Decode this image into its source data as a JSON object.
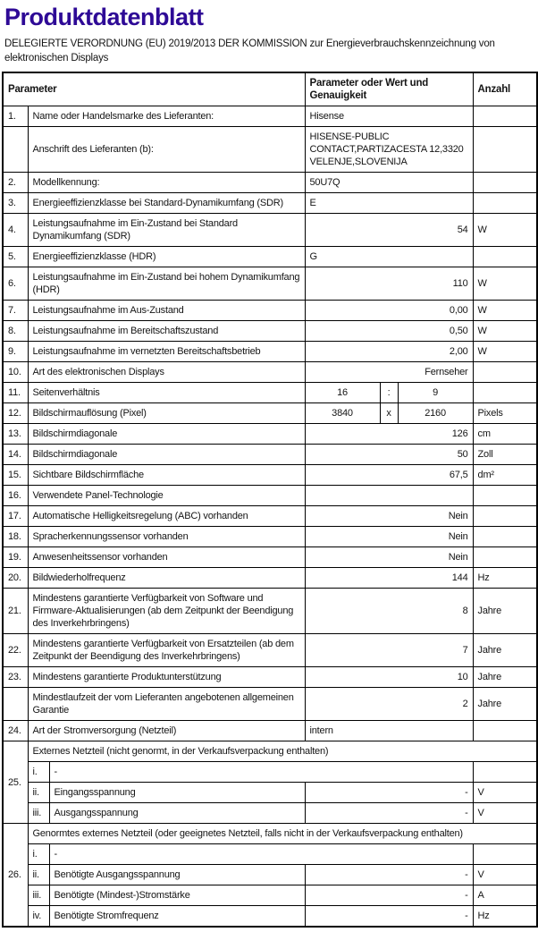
{
  "page": {
    "title": "Produktdatenblatt",
    "title_color": "#2e0a96",
    "subtitle": "DELEGIERTE VERORDNUNG (EU) 2019/2013 DER KOMMISSION zur Energieverbrauchskennzeichnung von elektronischen Displays"
  },
  "table": {
    "headers": {
      "parameter": "Parameter",
      "value": "Parameter oder Wert und Genauigkeit",
      "amount": "Anzahl"
    },
    "rows": [
      {
        "t": "r",
        "num": "1.",
        "label": "Name oder Handelsmarke des Lieferanten:",
        "value": "Hisense",
        "align": "left",
        "unit": ""
      },
      {
        "t": "r",
        "num": "",
        "label": "Anschrift des Lieferanten (b):",
        "value": "HISENSE-PUBLIC CONTACT,PARTIZACESTA 12,3320 VELENJE,SLOVENIJA",
        "align": "left",
        "unit": ""
      },
      {
        "t": "r",
        "num": "2.",
        "label": "Modellkennung:",
        "value": "50U7Q",
        "align": "left",
        "unit": ""
      },
      {
        "t": "r",
        "num": "3.",
        "label": "Energieeffizienzklasse bei Standard-Dynamikumfang (SDR)",
        "value": "E",
        "align": "left",
        "unit": ""
      },
      {
        "t": "r",
        "num": "4.",
        "label": "Leistungsaufnahme im Ein-Zustand bei Standard Dynamikumfang (SDR)",
        "value": "54",
        "align": "right",
        "unit": "W"
      },
      {
        "t": "r",
        "num": "5.",
        "label": "Energieeffizienzklasse (HDR)",
        "value": "G",
        "align": "left",
        "unit": ""
      },
      {
        "t": "r",
        "num": "6.",
        "label": "Leistungsaufnahme im Ein-Zustand bei hohem Dynamikumfang (HDR)",
        "value": "110",
        "align": "right",
        "unit": "W"
      },
      {
        "t": "r",
        "num": "7.",
        "label": "Leistungsaufnahme im Aus-Zustand",
        "value": "0,00",
        "align": "right",
        "unit": "W"
      },
      {
        "t": "r",
        "num": "8.",
        "label": "Leistungsaufnahme im Bereitschaftszustand",
        "value": "0,50",
        "align": "right",
        "unit": "W"
      },
      {
        "t": "r",
        "num": "9.",
        "label": "Leistungsaufnahme im vernetzten Bereitschaftsbetrieb",
        "value": "2,00",
        "align": "right",
        "unit": "W"
      },
      {
        "t": "r",
        "num": "10.",
        "label": "Art des elektronischen Displays",
        "value": "Fernseher",
        "align": "right",
        "unit": ""
      },
      {
        "t": "t3",
        "num": "11.",
        "label": "Seitenverhältnis",
        "v1": "16",
        "sep": ":",
        "v2": "9",
        "unit": ""
      },
      {
        "t": "t3",
        "num": "12.",
        "label": "Bildschirmauflösung (Pixel)",
        "v1": "3840",
        "sep": "x",
        "v2": "2160",
        "unit": "Pixels"
      },
      {
        "t": "r",
        "num": "13.",
        "label": "Bildschirmdiagonale",
        "value": "126",
        "align": "right",
        "unit": "cm"
      },
      {
        "t": "r",
        "num": "14.",
        "label": "Bildschirmdiagonale",
        "value": "50",
        "align": "right",
        "unit": "Zoll"
      },
      {
        "t": "r",
        "num": "15.",
        "label": "Sichtbare Bildschirmfläche",
        "value": "67,5",
        "align": "right",
        "unit": "dm²"
      },
      {
        "t": "r",
        "num": "16.",
        "label": "Verwendete Panel-Technologie",
        "value": "",
        "align": "left",
        "unit": ""
      },
      {
        "t": "r",
        "num": "17.",
        "label": "Automatische Helligkeitsregelung (ABC) vorhanden",
        "value": "Nein",
        "align": "right",
        "unit": ""
      },
      {
        "t": "r",
        "num": "18.",
        "label": "Spracherkennungssensor vorhanden",
        "value": "Nein",
        "align": "right",
        "unit": ""
      },
      {
        "t": "r",
        "num": "19.",
        "label": "Anwesenheitssensor vorhanden",
        "value": "Nein",
        "align": "right",
        "unit": ""
      },
      {
        "t": "r",
        "num": "20.",
        "label": "Bildwiederholfrequenz",
        "value": "144",
        "align": "right",
        "unit": "Hz"
      },
      {
        "t": "r",
        "num": "21.",
        "label": "Mindestens garantierte Verfügbarkeit von Software und Firmware-Aktualisierungen (ab dem Zeitpunkt der Beendigung des Inverkehrbringens)",
        "value": "8",
        "align": "right",
        "unit": "Jahre"
      },
      {
        "t": "r",
        "num": "22.",
        "label": "Mindestens garantierte Verfügbarkeit von Ersatzteilen (ab dem Zeitpunkt der Beendigung des Inverkehrbringens)",
        "value": "7",
        "align": "right",
        "unit": "Jahre"
      },
      {
        "t": "r",
        "num": "23.",
        "label": "Mindestens garantierte Produktunterstützung",
        "value": "10",
        "align": "right",
        "unit": "Jahre"
      },
      {
        "t": "r",
        "num": "",
        "label": "Mindestlaufzeit der vom Lieferanten angebotenen allgemeinen Garantie",
        "value": "2",
        "align": "right",
        "unit": "Jahre"
      },
      {
        "t": "r",
        "num": "24.",
        "label": "Art der Stromversorgung (Netzteil)",
        "value": "intern",
        "align": "left",
        "unit": ""
      },
      {
        "t": "g",
        "num": "25.",
        "label": "Externes Netzteil (nicht genormt, in der Verkaufsverpackung enthalten)",
        "span": 4
      },
      {
        "t": "sd",
        "num": "i.",
        "value": "-"
      },
      {
        "t": "s",
        "num": "ii.",
        "label": "Eingangsspannung",
        "value": "-",
        "unit": "V"
      },
      {
        "t": "s",
        "num": "iii.",
        "label": "Ausgangsspannung",
        "value": "-",
        "unit": "V"
      },
      {
        "t": "g",
        "num": "26.",
        "label": "Genormtes externes Netzteil (oder geeignetes Netzteil, falls nicht in der Verkaufsverpackung enthalten)",
        "span": 5
      },
      {
        "t": "sd",
        "num": "i.",
        "value": "-"
      },
      {
        "t": "s",
        "num": "ii.",
        "label": "Benötigte Ausgangsspannung",
        "value": "-",
        "unit": "V"
      },
      {
        "t": "s",
        "num": "iii.",
        "label": "Benötigte (Mindest-)Stromstärke",
        "value": "-",
        "unit": "A"
      },
      {
        "t": "s",
        "num": "iv.",
        "label": "Benötigte Stromfrequenz",
        "value": "-",
        "unit": "Hz"
      }
    ]
  }
}
